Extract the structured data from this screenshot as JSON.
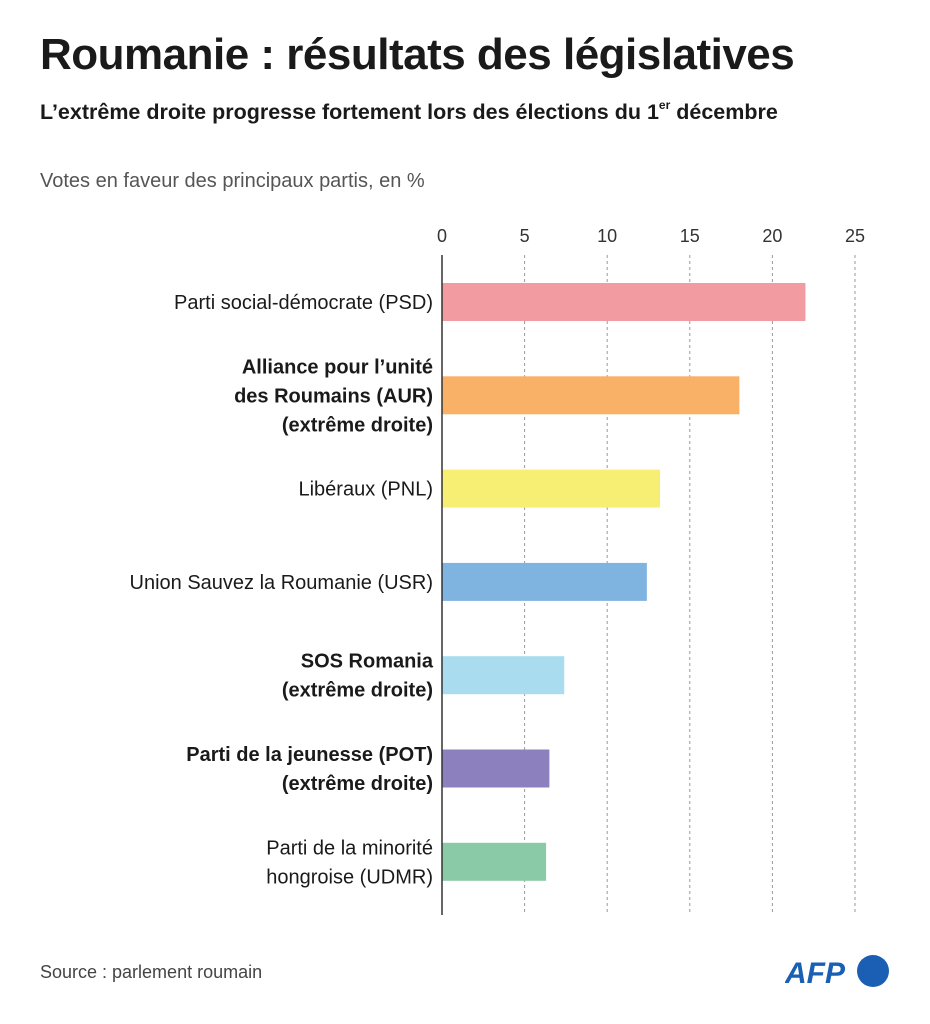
{
  "header": {
    "title": "Roumanie : résultats des législatives",
    "subtitle_main": "L’extrême droite progresse fortement lors des élections du 1",
    "subtitle_sup": "er",
    "subtitle_end": " décembre",
    "unit_note": "Votes en faveur des principaux partis, en %"
  },
  "footer": {
    "source": "Source : parlement roumain",
    "logo_text": "AFP"
  },
  "chart_data": {
    "type": "bar",
    "orientation": "horizontal",
    "title": "Roumanie : résultats des législatives",
    "xlabel": "",
    "ylabel": "",
    "xlim": [
      0,
      25
    ],
    "xticks": [
      0,
      5,
      10,
      15,
      20,
      25
    ],
    "grid": true,
    "categories": [
      {
        "lines": [
          "Parti social-démocrate (PSD)"
        ],
        "bold": false,
        "color": "#f29ca1"
      },
      {
        "lines": [
          "Alliance pour l’unité",
          "des Roumains (AUR)",
          "(extrême droite)"
        ],
        "bold": true,
        "color": "#f8b166"
      },
      {
        "lines": [
          "Libéraux (PNL)"
        ],
        "bold": false,
        "color": "#f7ef74"
      },
      {
        "lines": [
          "Union Sauvez la Roumanie (USR)"
        ],
        "bold": false,
        "color": "#7fb3e0"
      },
      {
        "lines": [
          "SOS Romania",
          "(extrême droite)"
        ],
        "bold": true,
        "color": "#a9dcef"
      },
      {
        "lines": [
          "Parti de la jeunesse (POT)",
          "(extrême droite)"
        ],
        "bold": true,
        "color": "#8d80be"
      },
      {
        "lines": [
          "Parti de la minorité",
          "hongroise (UDMR)"
        ],
        "bold": false,
        "color": "#8bcaa7"
      }
    ],
    "values": [
      22.0,
      18.0,
      13.2,
      12.4,
      7.4,
      6.5,
      6.3
    ]
  }
}
